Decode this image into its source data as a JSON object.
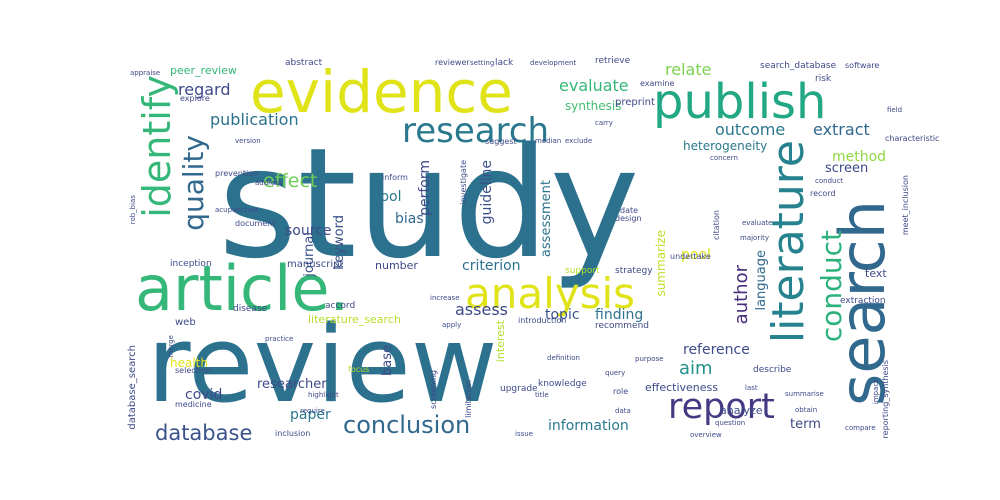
{
  "words": [
    {
      "text": "study",
      "color": "#2c728e"
    },
    {
      "text": "review",
      "color": "#2c728e"
    },
    {
      "text": "search",
      "color": "#31688e"
    },
    {
      "text": "article.",
      "color": "#35b779"
    },
    {
      "text": "evidence",
      "color": "#dfe318"
    },
    {
      "text": "publish",
      "color": "#22a884"
    },
    {
      "text": "analysis",
      "color": "#dfe318"
    },
    {
      "text": "literature",
      "color": "#26828e"
    },
    {
      "text": "research",
      "color": "#2a788e"
    },
    {
      "text": "report",
      "color": "#443a83"
    },
    {
      "text": "identify",
      "color": "#35b779"
    },
    {
      "text": "quality",
      "color": "#31688e"
    },
    {
      "text": "conduct",
      "color": "#2db27d"
    },
    {
      "text": "conclusion",
      "color": "#31688e"
    },
    {
      "text": "database",
      "color": "#3b528b"
    },
    {
      "text": "effect",
      "color": "#6ece58"
    },
    {
      "text": "publication",
      "color": "#2c728e"
    },
    {
      "text": "outcome",
      "color": "#2a788e"
    },
    {
      "text": "extract",
      "color": "#31688e"
    },
    {
      "text": "evaluate",
      "color": "#35b779"
    },
    {
      "text": "relate",
      "color": "#7ad151"
    },
    {
      "text": "regard",
      "color": "#3e4a89"
    },
    {
      "text": "method",
      "color": "#90d743"
    },
    {
      "text": "source",
      "color": "#3e4a89"
    },
    {
      "text": "assess",
      "color": "#3e4a89"
    },
    {
      "text": "criterion",
      "color": "#2c728e"
    },
    {
      "text": "author",
      "color": "#472d7b"
    },
    {
      "text": "information",
      "color": "#2a788e"
    },
    {
      "text": "reference",
      "color": "#3e4a89"
    },
    {
      "text": "aim",
      "color": "#21918c"
    },
    {
      "text": "pool",
      "color": "#dfe318"
    },
    {
      "text": "topic",
      "color": "#3b528b"
    },
    {
      "text": "finding",
      "color": "#2c728e"
    },
    {
      "text": "bias",
      "color": "#31688e"
    },
    {
      "text": "tool",
      "color": "#2a788e"
    },
    {
      "text": "language",
      "color": "#31688e"
    },
    {
      "text": "perform",
      "color": "#3e4a89"
    },
    {
      "text": "guideline",
      "color": "#3b528b"
    },
    {
      "text": "assessment",
      "color": "#2c728e"
    },
    {
      "text": "heterogeneity",
      "color": "#2a788e"
    },
    {
      "text": "synthesis",
      "color": "#44bf70"
    },
    {
      "text": "paper",
      "color": "#2a788e"
    },
    {
      "text": "covid",
      "color": "#3e4a89"
    },
    {
      "text": "term",
      "color": "#3e4a89"
    },
    {
      "text": "journal",
      "color": "#3b528b"
    },
    {
      "text": "keyword",
      "color": "#3b528b"
    },
    {
      "text": "base",
      "color": "#3e4a89"
    },
    {
      "text": "researcher",
      "color": "#3e4a89"
    },
    {
      "text": "screen",
      "color": "#3e4a89"
    },
    {
      "text": "summarize",
      "color": "#bddf26"
    },
    {
      "text": "text",
      "color": "#3e4a89"
    },
    {
      "text": "analyze",
      "color": "#3e4a89"
    },
    {
      "text": "health",
      "color": "#dfe318"
    },
    {
      "text": "literature_search",
      "color": "#b5de2b"
    },
    {
      "text": "peer_review",
      "color": "#35b779"
    },
    {
      "text": "database_search",
      "color": "#3e4a89"
    },
    {
      "text": "number",
      "color": "#3e4a89"
    },
    {
      "text": "interest",
      "color": "#b5de2b"
    },
    {
      "text": "effectiveness",
      "color": "#3e4a89"
    },
    {
      "text": "search_database",
      "color": "#3e4a89"
    },
    {
      "text": "manuscript",
      "color": "#3e4a89"
    },
    {
      "text": "inception",
      "color": "#3e4a89"
    },
    {
      "text": "explore",
      "color": "#3e4a89"
    },
    {
      "text": "web",
      "color": "#3e4a89"
    },
    {
      "text": "upgrade",
      "color": "#3e4a89"
    },
    {
      "text": "extraction",
      "color": "#3e4a89"
    },
    {
      "text": "knowledge",
      "color": "#3e4a89"
    },
    {
      "text": "recommend",
      "color": "#3e4a89"
    },
    {
      "text": "describe",
      "color": "#3e4a89"
    },
    {
      "text": "strategy",
      "color": "#3e4a89"
    },
    {
      "text": "support",
      "color": "#b5de2b"
    },
    {
      "text": "accord",
      "color": "#3e4a89"
    },
    {
      "text": "disease",
      "color": "#3e4a89"
    },
    {
      "text": "introduction",
      "color": "#3e4a89"
    },
    {
      "text": "abstract",
      "color": "#3e4a89"
    },
    {
      "text": "lack",
      "color": "#3e4a89"
    },
    {
      "text": "retrieve",
      "color": "#3e4a89"
    },
    {
      "text": "software",
      "color": "#3e4a89"
    },
    {
      "text": "risk",
      "color": "#3e4a89"
    },
    {
      "text": "reviewer",
      "color": "#3e4a89"
    },
    {
      "text": "preprint",
      "color": "#3e4a89"
    },
    {
      "text": "examine",
      "color": "#3e4a89"
    },
    {
      "text": "suggest",
      "color": "#3e4a89"
    },
    {
      "text": "document",
      "color": "#3e4a89"
    },
    {
      "text": "design",
      "color": "#3e4a89"
    },
    {
      "text": "date",
      "color": "#3e4a89"
    },
    {
      "text": "prevention",
      "color": "#3e4a89"
    },
    {
      "text": "citation",
      "color": "#3e4a89"
    },
    {
      "text": "meet_inclusion",
      "color": "#3e4a89"
    },
    {
      "text": "record",
      "color": "#3e4a89"
    },
    {
      "text": "characteristic",
      "color": "#3e4a89"
    },
    {
      "text": "inform",
      "color": "#3e4a89"
    },
    {
      "text": "investigate",
      "color": "#3e4a89"
    },
    {
      "text": "undertake",
      "color": "#3e4a89"
    },
    {
      "text": "limitation",
      "color": "#3e4a89"
    },
    {
      "text": "screening",
      "color": "#3e4a89"
    },
    {
      "text": "inclusion",
      "color": "#3e4a89"
    },
    {
      "text": "selection",
      "color": "#3e4a89"
    },
    {
      "text": "medicine",
      "color": "#3e4a89"
    },
    {
      "text": "require",
      "color": "#3e4a89"
    },
    {
      "text": "highlight",
      "color": "#3e4a89"
    },
    {
      "text": "focus",
      "color": "#3e4a89"
    },
    {
      "text": "role",
      "color": "#3e4a89"
    },
    {
      "text": "question",
      "color": "#3e4a89"
    },
    {
      "text": "last",
      "color": "#3e4a89"
    },
    {
      "text": "title",
      "color": "#3e4a89"
    },
    {
      "text": "data",
      "color": "#3e4a89"
    },
    {
      "text": "obtain",
      "color": "#3e4a89"
    },
    {
      "text": "summarise",
      "color": "#3e4a89"
    },
    {
      "text": "compare",
      "color": "#3e4a89"
    },
    {
      "text": "reporting_synthesis",
      "color": "#3e4a89"
    },
    {
      "text": "overview",
      "color": "#3e4a89"
    },
    {
      "text": "issue",
      "color": "#3e4a89"
    },
    {
      "text": "purpose",
      "color": "#3e4a89"
    },
    {
      "text": "query",
      "color": "#3e4a89"
    },
    {
      "text": "apply",
      "color": "#3e4a89"
    },
    {
      "text": "appraise",
      "color": "#3e4a89"
    },
    {
      "text": "setting",
      "color": "#3e4a89"
    },
    {
      "text": "development",
      "color": "#3e4a89"
    },
    {
      "text": "field",
      "color": "#3e4a89"
    },
    {
      "text": "carry",
      "color": "#3e4a89"
    },
    {
      "text": "exclude",
      "color": "#3e4a89"
    },
    {
      "text": "median",
      "color": "#3e4a89"
    },
    {
      "text": "version",
      "color": "#3e4a89"
    },
    {
      "text": "acupuncture",
      "color": "#3e4a89"
    },
    {
      "text": "address",
      "color": "#3e4a89"
    },
    {
      "text": "practice",
      "color": "#3e4a89"
    },
    {
      "text": "merge",
      "color": "#3e4a89"
    },
    {
      "text": "evaluate",
      "color": "#3e4a89"
    },
    {
      "text": "majority",
      "color": "#3e4a89"
    },
    {
      "text": "increase",
      "color": "#3e4a89"
    },
    {
      "text": "rob_bias",
      "color": "#3e4a89"
    },
    {
      "text": "concern",
      "color": "#3e4a89"
    },
    {
      "text": "conduct",
      "color": "#3e4a89"
    },
    {
      "text": "definition",
      "color": "#3e4a89"
    },
    {
      "text": "impact",
      "color": "#3e4a89"
    }
  ]
}
